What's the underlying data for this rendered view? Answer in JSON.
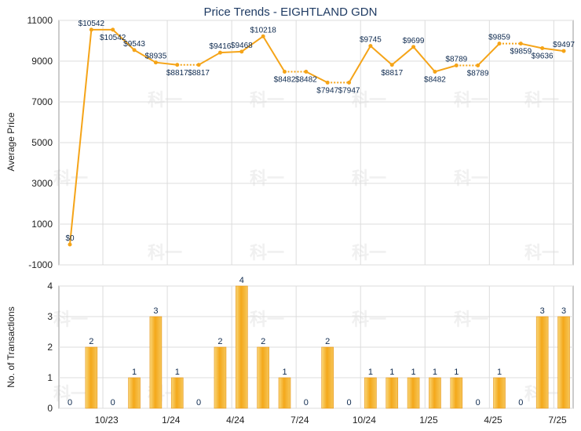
{
  "chart_data": [
    {
      "type": "line",
      "title": "Price Trends - EIGHTLAND GDN",
      "xlabel": "",
      "ylabel": "Average Price",
      "ylim": [
        -1000,
        11000
      ],
      "y_ticks": [
        "11000",
        "9000",
        "7000",
        "5000",
        "3000",
        "1000",
        "-1000"
      ],
      "x_tick_labels": [
        "10/23",
        "1/24",
        "4/24",
        "7/24",
        "10/24",
        "1/25",
        "4/25",
        "7/25"
      ],
      "grid": true,
      "series": [
        {
          "color": "#f5a418",
          "values": [
            0,
            10542,
            10542,
            9543,
            8935,
            8817,
            8817,
            9416,
            9468,
            10218,
            8482,
            8482,
            7947,
            7947,
            9745,
            8817,
            9699,
            8482,
            8789,
            8789,
            9859,
            9859,
            9636,
            9497
          ],
          "data_labels": [
            "$0",
            "$10542",
            "$10542",
            "$9543",
            "$8935",
            "$8817",
            "$8817",
            "$9416",
            "$9468",
            "$10218",
            "$8482",
            "$8482",
            "$7947",
            "$7947",
            "$9745",
            "$8817",
            "$9699",
            "$8482",
            "$8789",
            "$8789",
            "$9859",
            "$9859",
            "$9636",
            "$9497"
          ],
          "interpolated": [
            false,
            false,
            false,
            false,
            false,
            false,
            true,
            false,
            false,
            false,
            false,
            true,
            false,
            true,
            false,
            false,
            false,
            false,
            false,
            true,
            false,
            true,
            false,
            false
          ]
        }
      ]
    },
    {
      "type": "bar",
      "xlabel": "",
      "ylabel": "No. of Transactions",
      "ylim": [
        0,
        4
      ],
      "y_ticks": [
        "4",
        "3",
        "2",
        "1",
        "0"
      ],
      "x_tick_labels": [
        "10/23",
        "1/24",
        "4/24",
        "7/24",
        "10/24",
        "1/25",
        "4/25",
        "7/25"
      ],
      "grid": true,
      "series": [
        {
          "color": "#f5a418",
          "values": [
            0,
            2,
            0,
            1,
            3,
            1,
            0,
            2,
            4,
            2,
            1,
            0,
            2,
            0,
            1,
            1,
            1,
            1,
            1,
            0,
            1,
            0,
            3,
            3
          ],
          "data_labels": [
            "0",
            "2",
            "0",
            "1",
            "3",
            "1",
            "0",
            "2",
            "4",
            "2",
            "1",
            "0",
            "2",
            "0",
            "1",
            "1",
            "1",
            "1",
            "1",
            "0",
            "1",
            "0",
            "3",
            "3"
          ]
        }
      ]
    }
  ],
  "watermark": "科一"
}
